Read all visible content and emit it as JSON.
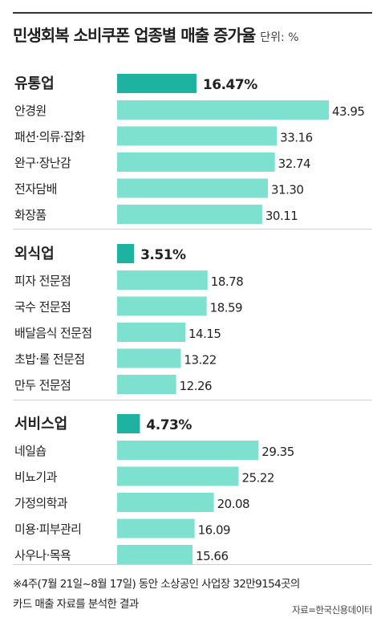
{
  "title": "민생회복 소비쿠폰 업종별 매출 증가율",
  "unit_label": "단위: %",
  "chart_data": {
    "type": "bar",
    "orientation": "horizontal",
    "groups": [
      {
        "name": "유통업",
        "total": 16.47,
        "total_label": "16.47%",
        "items": [
          {
            "label": "안경원",
            "value": 43.95,
            "value_label": "43.95"
          },
          {
            "label": "패션·의류·잡화",
            "value": 33.16,
            "value_label": "33.16"
          },
          {
            "label": "완구·장난감",
            "value": 32.74,
            "value_label": "32.74"
          },
          {
            "label": "전자담배",
            "value": 31.3,
            "value_label": "31.30"
          },
          {
            "label": "화장품",
            "value": 30.11,
            "value_label": "30.11"
          }
        ]
      },
      {
        "name": "외식업",
        "total": 3.51,
        "total_label": "3.51%",
        "items": [
          {
            "label": "피자 전문점",
            "value": 18.78,
            "value_label": "18.78"
          },
          {
            "label": "국수 전문점",
            "value": 18.59,
            "value_label": "18.59"
          },
          {
            "label": "배달음식 전문점",
            "value": 14.15,
            "value_label": "14.15"
          },
          {
            "label": "초밥·롤 전문점",
            "value": 13.22,
            "value_label": "13.22"
          },
          {
            "label": "만두 전문점",
            "value": 12.26,
            "value_label": "12.26"
          }
        ]
      },
      {
        "name": "서비스업",
        "total": 4.73,
        "total_label": "4.73%",
        "items": [
          {
            "label": "네일숍",
            "value": 29.35,
            "value_label": "29.35"
          },
          {
            "label": "비뇨기과",
            "value": 25.22,
            "value_label": "25.22"
          },
          {
            "label": "가정의학과",
            "value": 20.08,
            "value_label": "20.08"
          },
          {
            "label": "미용·피부관리",
            "value": 16.09,
            "value_label": "16.09"
          },
          {
            "label": "사우나·목욕",
            "value": 15.66,
            "value_label": "15.66"
          }
        ]
      }
    ]
  },
  "footnote": {
    "line1": "※4주(7월 21일~8월 17일) 동안 소상공인 사업장 32만9154곳의",
    "line2": "카드 매출 자료를 분석한 결과"
  },
  "source": "자료=한국신용데이터",
  "colors": {
    "group_bar": "#1eb3a0",
    "item_bar": "#7ee0cf",
    "text": "#222222",
    "rule": "#333333",
    "separator": "#cfcfcf"
  }
}
